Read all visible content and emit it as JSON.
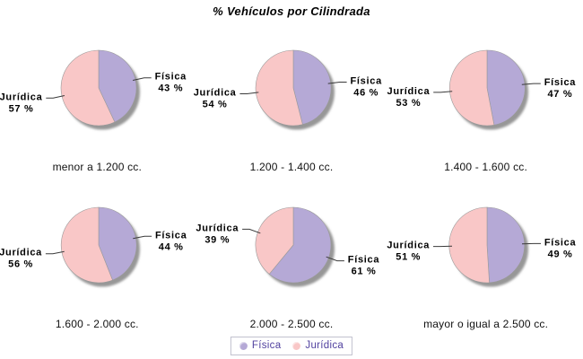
{
  "title": "% Vehículos por Cilindrada",
  "colors": {
    "fisica": "#b5a9d6",
    "juridica": "#f9c7c7",
    "shadow": "#979797",
    "outline": "#9a9a9a",
    "leader": "#3a3a3a",
    "legend_text": "#4f3f9e",
    "legend_border": "#c2c2ce"
  },
  "legend": {
    "items": [
      {
        "label": "Física",
        "color": "#b5a9d6"
      },
      {
        "label": "Jurídica",
        "color": "#f9c7c7"
      }
    ]
  },
  "chart_data": {
    "type": "pie",
    "title": "% Vehículos por Cilindrada",
    "series_labels": [
      "Física",
      "Jurídica"
    ],
    "unit": "%",
    "legend_position": "bottom",
    "layout": "2 rows x 3 columns",
    "pies": [
      {
        "category": "menor a 1.200 cc.",
        "fisica": 43,
        "juridica": 57
      },
      {
        "category": "1.200 - 1.400 cc.",
        "fisica": 46,
        "juridica": 54
      },
      {
        "category": "1.400 - 1.600 cc.",
        "fisica": 47,
        "juridica": 53
      },
      {
        "category": "1.600 - 2.000 cc.",
        "fisica": 44,
        "juridica": 56
      },
      {
        "category": "2.000 - 2.500 cc.",
        "fisica": 61,
        "juridica": 39
      },
      {
        "category": "mayor o igual a 2.500 cc.",
        "fisica": 49,
        "juridica": 51
      }
    ]
  }
}
